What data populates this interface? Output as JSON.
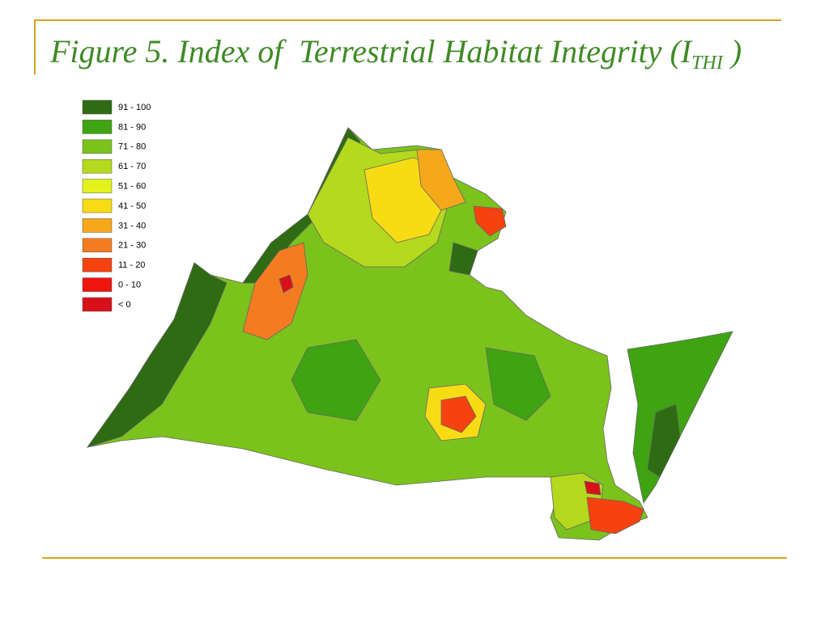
{
  "title": {
    "text": "Figure 5. Index of  Terrestrial Habitat Integrity (I",
    "subscript": "THI",
    "suffix": " )"
  },
  "legend": [
    {
      "label": "91 - 100",
      "color": "#2e6b12"
    },
    {
      "label": "81 - 90",
      "color": "#3fa312"
    },
    {
      "label": "71 - 80",
      "color": "#7cc21c"
    },
    {
      "label": "61 - 70",
      "color": "#b5d91c"
    },
    {
      "label": "51 - 60",
      "color": "#e3f21a"
    },
    {
      "label": "41 - 50",
      "color": "#f7dc14"
    },
    {
      "label": "31 - 40",
      "color": "#f5a81a"
    },
    {
      "label": "21 - 30",
      "color": "#f47b20"
    },
    {
      "label": "11 - 20",
      "color": "#f5420f"
    },
    {
      "label": "0 - 10",
      "color": "#f0150f"
    },
    {
      "label": "< 0",
      "color": "#d8101a"
    }
  ]
}
